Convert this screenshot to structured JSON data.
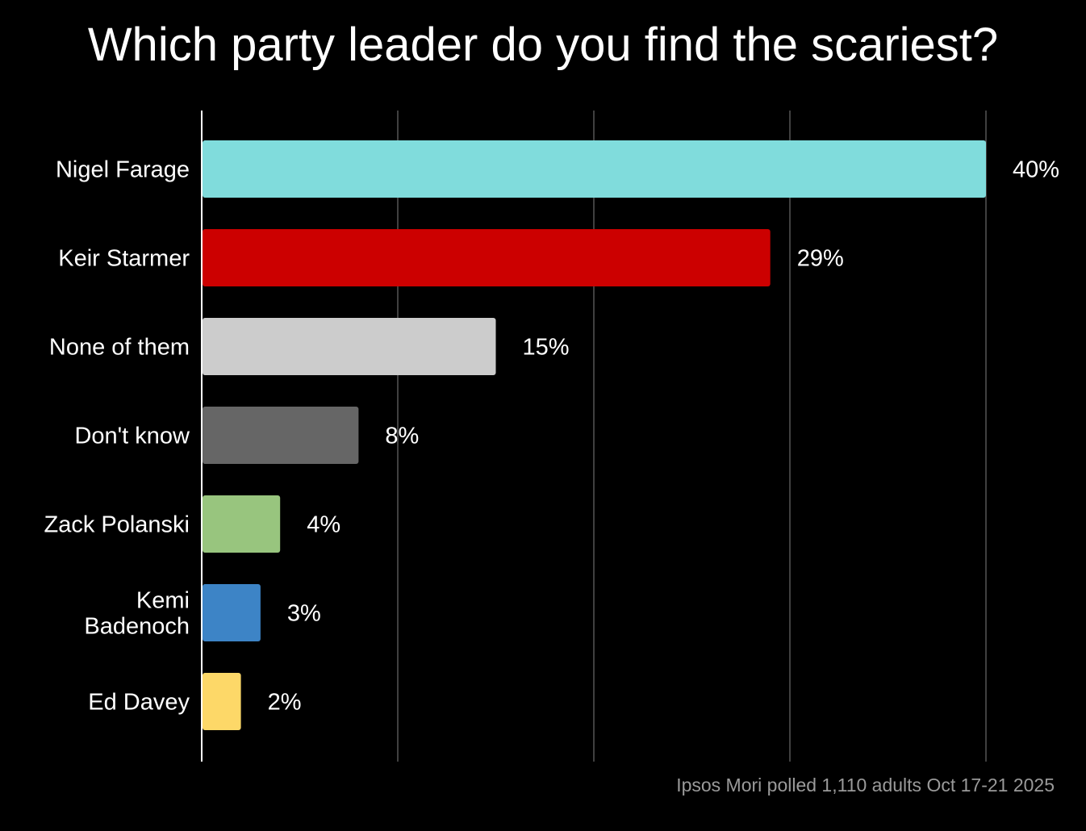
{
  "chart_data": {
    "type": "bar",
    "orientation": "horizontal",
    "title": "Which party leader do you find the scariest?",
    "categories": [
      "Nigel Farage",
      "Keir Starmer",
      "None of them",
      "Don't know",
      "Zack Polanski",
      "Kemi Badenoch",
      "Ed Davey"
    ],
    "values": [
      40,
      29,
      15,
      8,
      4,
      3,
      2
    ],
    "data_labels": [
      "40%",
      "29%",
      "15%",
      "8%",
      "4%",
      "3%",
      "2%"
    ],
    "colors": [
      "#80dcdc",
      "#cc0000",
      "#cccccc",
      "#666666",
      "#98c57e",
      "#3d84c6",
      "#fdd868"
    ],
    "xlim": [
      0,
      40
    ],
    "gridlines": [
      0,
      10,
      20,
      30,
      40
    ],
    "grid": true,
    "legend": "none",
    "xlabel": "",
    "ylabel": "",
    "source": "Ipsos Mori polled 1,110 adults Oct 17-21 2025"
  }
}
